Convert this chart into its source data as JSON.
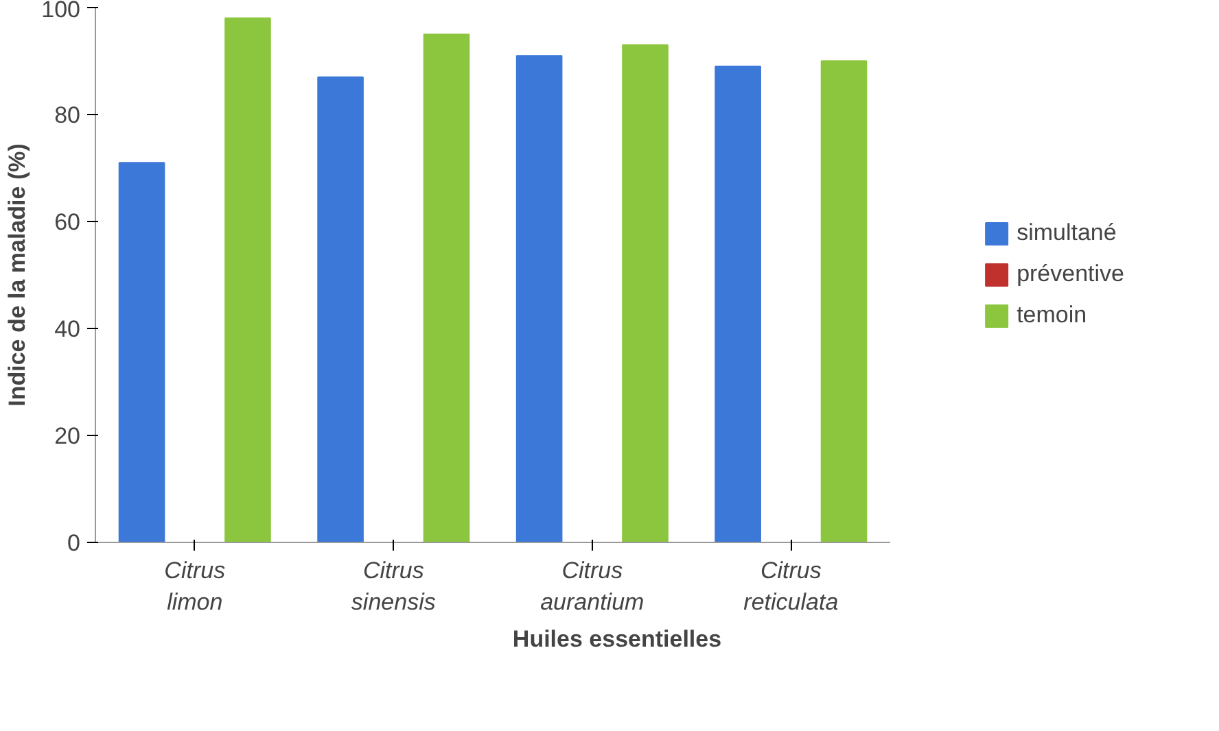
{
  "chart_data": {
    "type": "bar",
    "xlabel": "Huiles essentielles",
    "ylabel": "Indice de la maladie (%)",
    "categories": [
      "Citrus limon",
      "Citrus sinensis",
      "Citrus aurantium",
      "Citrus reticulata"
    ],
    "series": [
      {
        "name": "simultané",
        "color": "#3c78d8",
        "values": [
          71,
          87,
          91,
          89
        ]
      },
      {
        "name": "préventive",
        "color": "#c0302c",
        "values": [
          0,
          0,
          0,
          0
        ]
      },
      {
        "name": "temoin",
        "color": "#8cc63e",
        "values": [
          98,
          95,
          93,
          90
        ]
      }
    ],
    "ylim": [
      0,
      100
    ],
    "yticks": [
      0,
      20,
      40,
      60,
      80,
      100
    ],
    "grid": false,
    "legend": "right"
  }
}
